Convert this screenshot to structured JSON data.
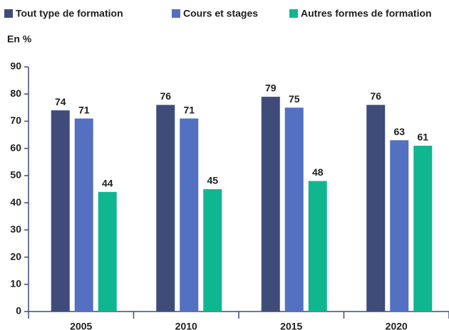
{
  "chart_data": {
    "type": "bar",
    "y_label": "En %",
    "categories": [
      "2005",
      "2010",
      "2015",
      "2020"
    ],
    "series": [
      {
        "name": "Tout type de formation",
        "color": "#3f4c7a",
        "values": [
          74,
          76,
          79,
          76
        ]
      },
      {
        "name": "Cours et stages",
        "color": "#5470c0",
        "values": [
          71,
          71,
          75,
          63
        ]
      },
      {
        "name": "Autres formes de formation",
        "color": "#10b690",
        "values": [
          44,
          45,
          48,
          61
        ]
      }
    ],
    "ylim": [
      0,
      90
    ],
    "yticks": [
      0,
      10,
      20,
      30,
      40,
      50,
      60,
      70,
      80,
      90
    ],
    "grid": false,
    "legend": "top"
  }
}
